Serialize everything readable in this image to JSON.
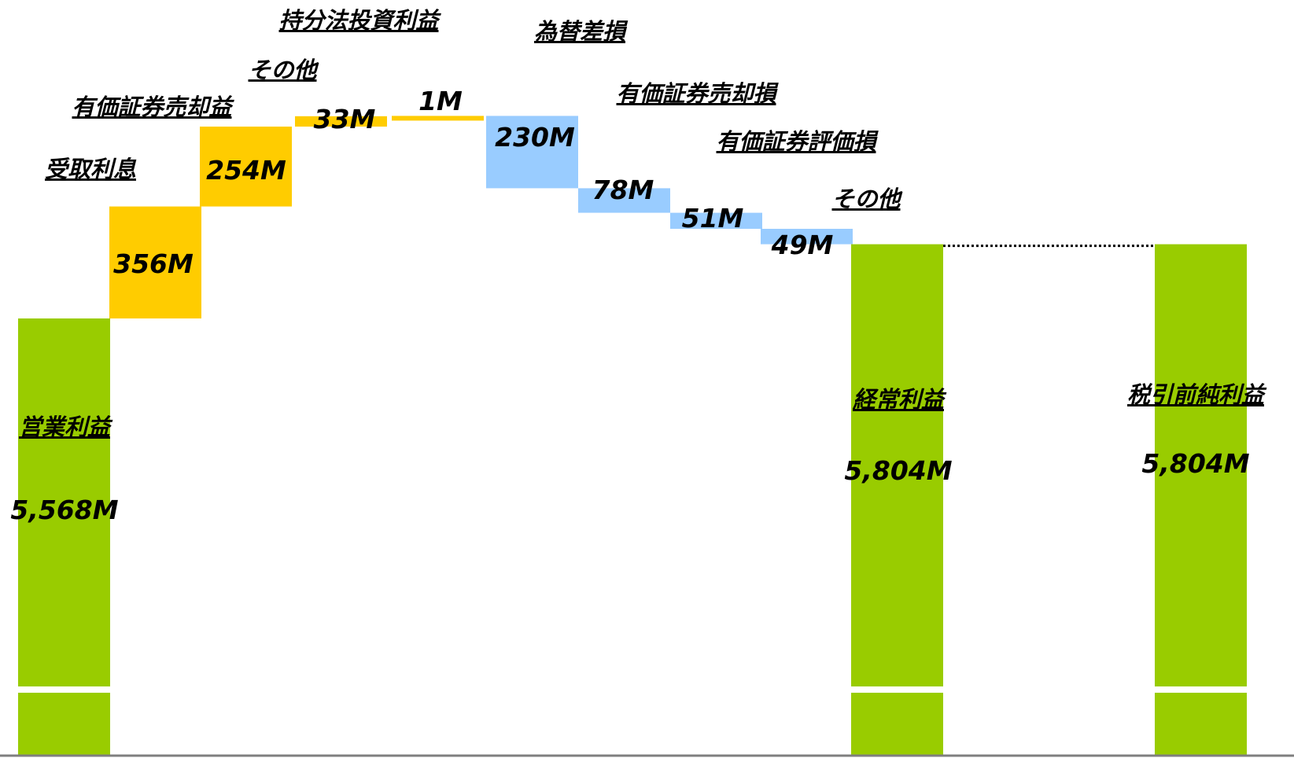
{
  "chart_data": {
    "type": "bar",
    "subtype": "waterfall",
    "title": "",
    "xlabel": "",
    "ylabel": "",
    "axis_break": true,
    "connector_line": "dotted",
    "colors": {
      "total": "#99cc00",
      "increase": "#ffcc00",
      "decrease": "#99ccff",
      "baseline": "#7f7f7f",
      "connector": "#000000"
    },
    "steps": [
      {
        "label": "営業利益",
        "value_label": "5,568M",
        "kind": "total",
        "value": 5568
      },
      {
        "label": "受取利息",
        "value_label": "356M",
        "kind": "increase",
        "value": 356
      },
      {
        "label": "有価証券売却益",
        "value_label": "254M",
        "kind": "increase",
        "value": 254
      },
      {
        "label": "その他",
        "value_label": "33M",
        "kind": "increase",
        "value": 33
      },
      {
        "label": "持分法投資利益",
        "value_label": "1M",
        "kind": "increase",
        "value": 1
      },
      {
        "label": "為替差損",
        "value_label": "230M",
        "kind": "decrease",
        "value": 230
      },
      {
        "label": "有価証券売却損",
        "value_label": "78M",
        "kind": "decrease",
        "value": 78
      },
      {
        "label": "有価証券評価損",
        "value_label": "51M",
        "kind": "decrease",
        "value": 51
      },
      {
        "label": "その他",
        "value_label": "49M",
        "kind": "decrease",
        "value": 49
      },
      {
        "label": "経常利益",
        "value_label": "5,804M",
        "kind": "total",
        "value": 5804
      },
      {
        "label": "税引前純利益",
        "value_label": "5,804M",
        "kind": "total",
        "value": 5804
      }
    ]
  }
}
